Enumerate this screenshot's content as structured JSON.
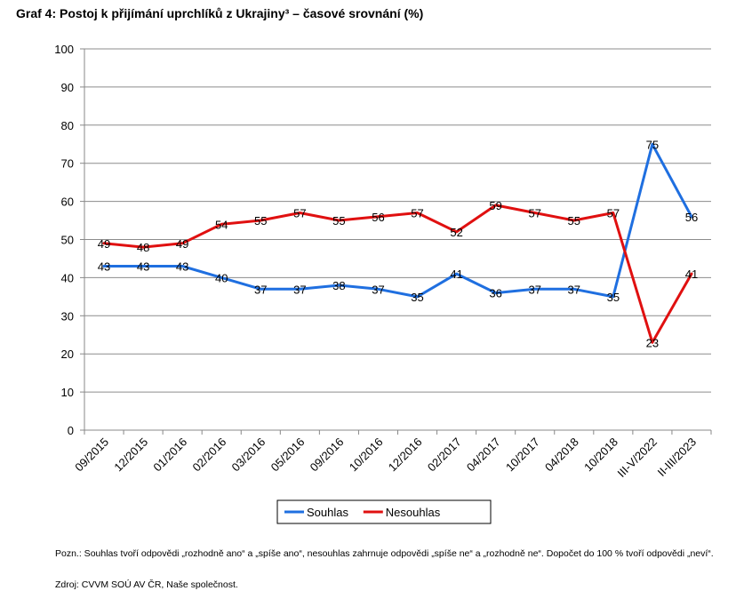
{
  "title": "Graf 4: Postoj k přijímání uprchlíků z Ukrajiny³ – časové srovnání (%)",
  "note": "Pozn.: Souhlas tvoří odpovědi „rozhodně ano“ a „spíše ano“, nesouhlas zahrnuje odpovědi „spíše ne“ a „rozhodně ne“. Dopočet do 100 % tvoří odpovědi „neví“.",
  "source": "Zdroj: CVVM SOÚ AV ČR, Naše společnost.",
  "chart_data": {
    "type": "line",
    "categories": [
      "09/2015",
      "12/2015",
      "01/2016",
      "02/2016",
      "03/2016",
      "05/2016",
      "09/2016",
      "10/2016",
      "12/2016",
      "02/2017",
      "04/2017",
      "10/2017",
      "04/2018",
      "10/2018",
      "III-V/2022",
      "II-III/2023"
    ],
    "series": [
      {
        "name": "Souhlas",
        "color": "#1f6fe0",
        "values": [
          43,
          43,
          43,
          40,
          37,
          37,
          38,
          37,
          35,
          41,
          36,
          37,
          37,
          35,
          75,
          56
        ]
      },
      {
        "name": "Nesouhlas",
        "color": "#e01010",
        "values": [
          49,
          48,
          49,
          54,
          55,
          57,
          55,
          56,
          57,
          52,
          59,
          57,
          55,
          57,
          23,
          41
        ]
      }
    ],
    "ylim": [
      0,
      100
    ],
    "yticks": [
      0,
      10,
      20,
      30,
      40,
      50,
      60,
      70,
      80,
      90,
      100
    ],
    "grid": true,
    "legend": "bottom-center"
  }
}
